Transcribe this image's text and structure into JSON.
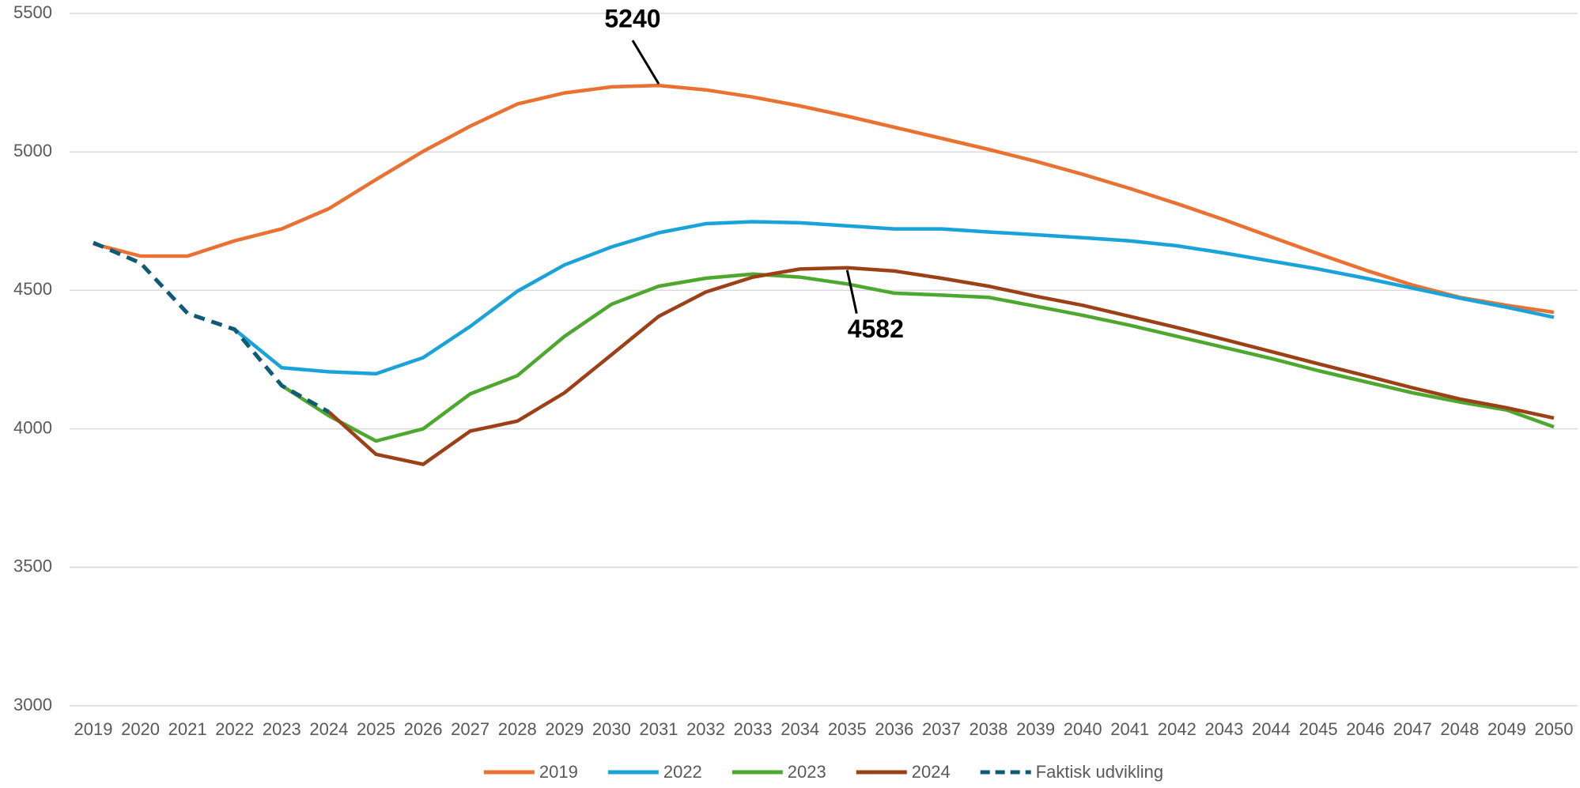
{
  "chart_data": {
    "type": "line",
    "categories": [
      "2019",
      "2020",
      "2021",
      "2022",
      "2023",
      "2024",
      "2025",
      "2026",
      "2027",
      "2028",
      "2029",
      "2030",
      "2031",
      "2032",
      "2033",
      "2034",
      "2035",
      "2036",
      "2037",
      "2038",
      "2039",
      "2040",
      "2041",
      "2042",
      "2043",
      "2044",
      "2045",
      "2046",
      "2047",
      "2048",
      "2049",
      "2050"
    ],
    "series": [
      {
        "name": "2019",
        "color": "#e97132",
        "dash": false,
        "values": [
          4668,
          4624,
          4624,
          4679,
          4722,
          4795,
          4900,
          5002,
          5093,
          5173,
          5213,
          5235,
          5240,
          5224,
          5198,
          5166,
          5129,
          5089,
          5049,
          5009,
          4966,
          4919,
          4868,
          4813,
          4755,
          4693,
          4632,
          4573,
          4519,
          4475,
          4446,
          4421
        ]
      },
      {
        "name": "2022",
        "color": "#1aa3d8",
        "dash": false,
        "values": [
          null,
          null,
          null,
          4359,
          4221,
          4206,
          4199,
          4257,
          4370,
          4497,
          4592,
          4657,
          4708,
          4741,
          4748,
          4744,
          4733,
          4722,
          4722,
          4711,
          4701,
          4690,
          4679,
          4661,
          4635,
          4606,
          4577,
          4544,
          4508,
          4472,
          4439,
          4403
        ]
      },
      {
        "name": "2023",
        "color": "#4ea72e",
        "dash": false,
        "values": [
          null,
          null,
          null,
          null,
          4156,
          4047,
          3956,
          4000,
          4126,
          4192,
          4334,
          4450,
          4515,
          4544,
          4559,
          4548,
          4523,
          4490,
          4483,
          4475,
          4443,
          4410,
          4374,
          4334,
          4294,
          4254,
          4210,
          4170,
          4130,
          4097,
          4068,
          4007
        ]
      },
      {
        "name": "2024",
        "color": "#9c4117",
        "dash": false,
        "values": [
          null,
          null,
          null,
          null,
          null,
          4061,
          3908,
          3872,
          3992,
          4028,
          4130,
          4268,
          4406,
          4494,
          4548,
          4577,
          4582,
          4570,
          4544,
          4515,
          4479,
          4446,
          4406,
          4366,
          4323,
          4279,
          4235,
          4192,
          4148,
          4108,
          4076,
          4039
        ]
      },
      {
        "name": "Faktisk udvikling",
        "color": "#0e5a77",
        "dash": true,
        "values": [
          4672,
          4599,
          4417,
          4359,
          4156,
          4061,
          null,
          null,
          null,
          null,
          null,
          null,
          null,
          null,
          null,
          null,
          null,
          null,
          null,
          null,
          null,
          null,
          null,
          null,
          null,
          null,
          null,
          null,
          null,
          null,
          null,
          null
        ]
      }
    ],
    "annotations": [
      {
        "text": "5240",
        "series": "2019",
        "x": "2031"
      },
      {
        "text": "4582",
        "series": "2024",
        "x": "2035"
      }
    ],
    "ylim": [
      3000,
      5500
    ],
    "yticks": [
      3000,
      3500,
      4000,
      4500,
      5000,
      5500
    ],
    "grid": true,
    "legend": "bottom"
  }
}
